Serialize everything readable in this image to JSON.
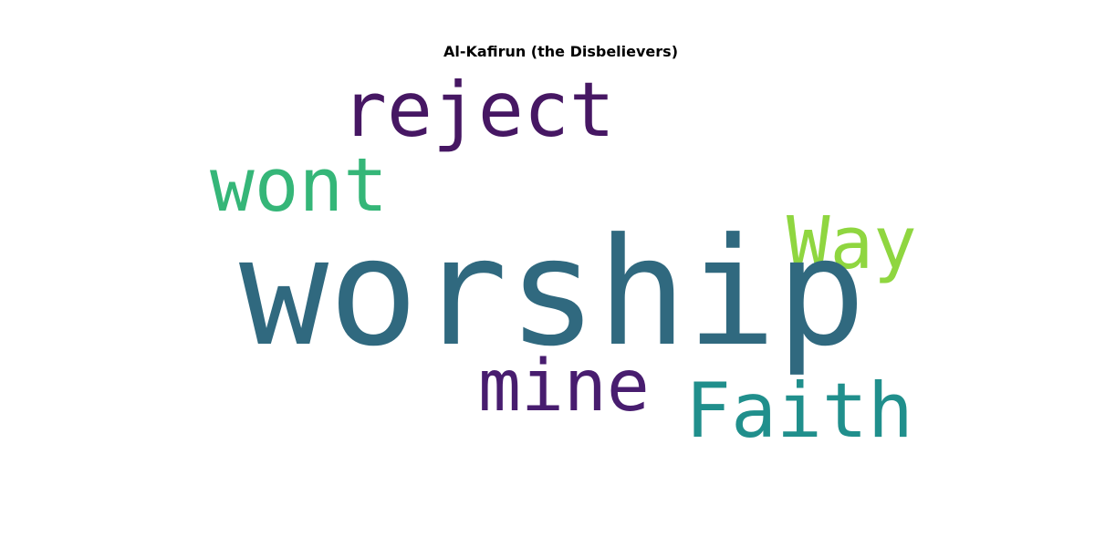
{
  "title": "Al-Kafirun (the Disbelievers)",
  "words": {
    "worship": {
      "text": "worship",
      "color": "#30697f"
    },
    "reject": {
      "text": "reject",
      "color": "#461763"
    },
    "wont": {
      "text": "wont",
      "color": "#35b678"
    },
    "way": {
      "text": "Way",
      "color": "#8fd640"
    },
    "mine": {
      "text": "mine",
      "color": "#481d6f"
    },
    "faith": {
      "text": "Faith",
      "color": "#208f8c"
    }
  }
}
